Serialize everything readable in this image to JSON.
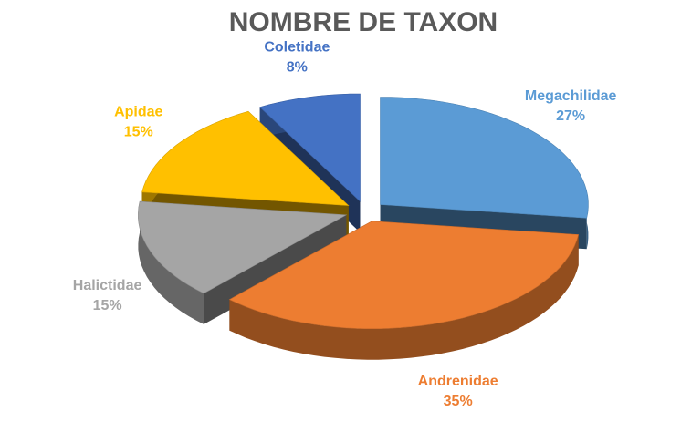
{
  "chart_data": {
    "type": "pie",
    "title": "NOMBRE DE TAXON",
    "categories": [
      "Megachilidae",
      "Andrenidae",
      "Halictidae",
      "Apidae",
      "Coletidae"
    ],
    "values": [
      27,
      35,
      15,
      15,
      8
    ],
    "value_labels": [
      "27%",
      "35%",
      "15%",
      "15%",
      "8%"
    ],
    "colors": [
      "#5b9bd5",
      "#ed7d31",
      "#a5a5a5",
      "#ffc000",
      "#4472c4"
    ]
  }
}
